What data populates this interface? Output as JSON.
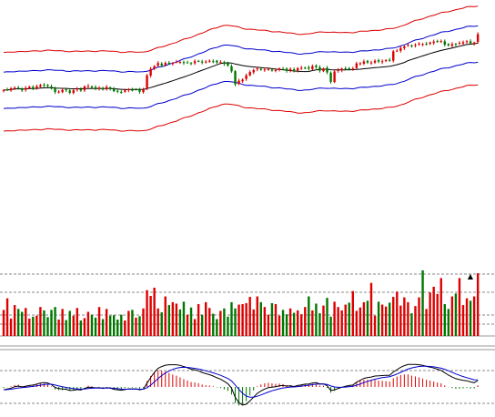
{
  "colors": {
    "background": "#ffffff",
    "up": "#dd0000",
    "down": "#007700",
    "outer_band": "#dd0000",
    "inner_band": "#0000cc",
    "middle_band": "#000000",
    "signal_line": "#0000cc",
    "macd_line": "#000000",
    "grid": "#888888",
    "separator": "#999999"
  },
  "chart_data": [
    {
      "type": "candlestick",
      "panel": "price",
      "grid": false,
      "overlays": [
        "outer-envelope-upper",
        "inner-envelope-upper",
        "middle-average",
        "inner-envelope-lower",
        "outer-envelope-lower"
      ],
      "ylim": [
        0,
        100
      ],
      "x": [
        0,
        1,
        2,
        3,
        4,
        5,
        6,
        7,
        8,
        9,
        10,
        11,
        12,
        13,
        14,
        15,
        16,
        17,
        18,
        19,
        20,
        21,
        22,
        23,
        24,
        25,
        26,
        27,
        28,
        29,
        30,
        31,
        32,
        33,
        34,
        35,
        36,
        37,
        38,
        39,
        40,
        41,
        42,
        43,
        44,
        45,
        46,
        47,
        48,
        49,
        50,
        51,
        52,
        53,
        54,
        55,
        56,
        57,
        58,
        59,
        60,
        61,
        62,
        63,
        64,
        65,
        66,
        67,
        68,
        69,
        70,
        71,
        72,
        73,
        74,
        75,
        76,
        77,
        78,
        79,
        80,
        81,
        82,
        83,
        84,
        85,
        86,
        87,
        88,
        89,
        90,
        91,
        92,
        93,
        94,
        95,
        96,
        97,
        98,
        99,
        100,
        101,
        102,
        103,
        104,
        105,
        106,
        107,
        108,
        109,
        110,
        111,
        112,
        113,
        114,
        115,
        116,
        117,
        118,
        119,
        120,
        121,
        122,
        123,
        124,
        125,
        126,
        127,
        128,
        129
      ],
      "close": [
        39.9,
        40.2,
        41.6,
        42.2,
        42.1,
        39.6,
        42.0,
        43.3,
        41.5,
        43.8,
        45.0,
        44.8,
        44.2,
        41.4,
        37.9,
        38.3,
        40.1,
        39.8,
        37.1,
        39.7,
        41.4,
        39.4,
        43.5,
        44.1,
        42.4,
        41.3,
        42.3,
        40.4,
        43.1,
        41.2,
        38.7,
        38.6,
        37.9,
        39.5,
        40.8,
        40.1,
        40.6,
        38.1,
        40.5,
        55.0,
        61.5,
        64.3,
        67.4,
        64.9,
        67.5,
        67.2,
        67.5,
        68.6,
        68.5,
        67.4,
        67.8,
        67.1,
        69.2,
        69.4,
        68.1,
        68.8,
        69.7,
        69.2,
        68.0,
        68.4,
        66.5,
        64.8,
        58.9,
        45.8,
        49.4,
        50.6,
        54.9,
        58.3,
        60.3,
        61.8,
        60.4,
        60.8,
        61.3,
        59.6,
        60.2,
        61.9,
        61.1,
        59.5,
        61.3,
        59.2,
        62.1,
        62.6,
        62.6,
        61.8,
        64.3,
        63.1,
        59.6,
        61.9,
        57.8,
        48.2,
        58.8,
        60.4,
        61.7,
        61.8,
        61.6,
        61.8,
        67.0,
        67.1,
        69.0,
        67.9,
        67.9,
        69.7,
        68.9,
        69.2,
        70.4,
        70.3,
        79.3,
        79.9,
        82.8,
        84.2,
        85.7,
        84.9,
        85.7,
        87.1,
        86.6,
        86.8,
        88.3,
        89.2,
        89.4,
        89.7,
        86.1,
        85.4,
        86.6,
        86.5,
        87.8,
        88.6,
        89.5,
        87.4,
        88.2,
        96.8
      ],
      "volume": [
        54,
        78,
        36,
        64,
        56,
        50,
        58,
        36,
        40,
        42,
        60,
        53,
        39,
        54,
        60,
        34,
        56,
        33,
        52,
        42,
        58,
        32,
        37,
        50,
        44,
        38,
        60,
        35,
        56,
        42,
        43,
        34,
        44,
        32,
        52,
        54,
        38,
        41,
        57,
        95,
        83,
        100,
        57,
        49,
        82,
        64,
        70,
        67,
        55,
        71,
        44,
        59,
        35,
        66,
        44,
        70,
        58,
        46,
        35,
        52,
        57,
        40,
        70,
        57,
        65,
        66,
        68,
        81,
        55,
        82,
        70,
        60,
        44,
        68,
        66,
        42,
        54,
        45,
        57,
        48,
        53,
        45,
        60,
        82,
        53,
        67,
        47,
        63,
        79,
        40,
        71,
        60,
        53,
        65,
        69,
        93,
        52,
        59,
        70,
        73,
        110,
        42,
        71,
        65,
        61,
        69,
        81,
        92,
        63,
        80,
        70,
        47,
        62,
        80,
        136,
        56,
        90,
        102,
        87,
        120,
        66,
        56,
        82,
        88,
        120,
        64,
        78,
        73,
        82,
        130
      ],
      "macd": [
        -1.2,
        -0.9,
        -0.5,
        0.1,
        0.4,
        0.0,
        0.3,
        0.6,
        0.8,
        1.2,
        1.6,
        1.8,
        1.7,
        1.0,
        -0.2,
        -0.7,
        -0.9,
        -1.0,
        -1.5,
        -1.4,
        -1.1,
        -1.3,
        -0.6,
        -0.1,
        -0.2,
        -0.4,
        -0.3,
        -0.6,
        -0.3,
        -0.5,
        -1.0,
        -1.2,
        -1.4,
        -1.1,
        -0.8,
        -0.9,
        -0.8,
        -1.2,
        -0.9,
        1.6,
        4.0,
        6.1,
        7.9,
        8.6,
        9.2,
        9.4,
        9.4,
        9.4,
        9.1,
        8.6,
        8.1,
        7.5,
        7.2,
        6.8,
        6.1,
        5.6,
        5.2,
        4.6,
        3.9,
        3.3,
        2.4,
        1.4,
        -0.5,
        -4.4,
        -6.6,
        -7.6,
        -7.3,
        -5.9,
        -4.3,
        -2.7,
        -1.7,
        -0.9,
        -0.3,
        -0.1,
        0.1,
        0.5,
        0.6,
        0.4,
        0.5,
        0.2,
        0.6,
        0.9,
        1.2,
        1.2,
        1.7,
        1.8,
        1.3,
        1.3,
        0.5,
        -1.5,
        -1.2,
        -0.7,
        -0.1,
        0.3,
        0.6,
        0.8,
        2.0,
        2.8,
        3.6,
        4.0,
        4.2,
        4.6,
        4.7,
        4.8,
        4.9,
        4.9,
        6.3,
        7.3,
        8.3,
        9.0,
        9.5,
        9.5,
        9.5,
        9.4,
        9.1,
        8.7,
        8.4,
        8.0,
        7.5,
        7.0,
        6.0,
        5.0,
        4.2,
        3.5,
        3.1,
        2.8,
        2.6,
        2.1,
        1.8,
        2.7
      ]
    }
  ],
  "price_marker": "▲"
}
